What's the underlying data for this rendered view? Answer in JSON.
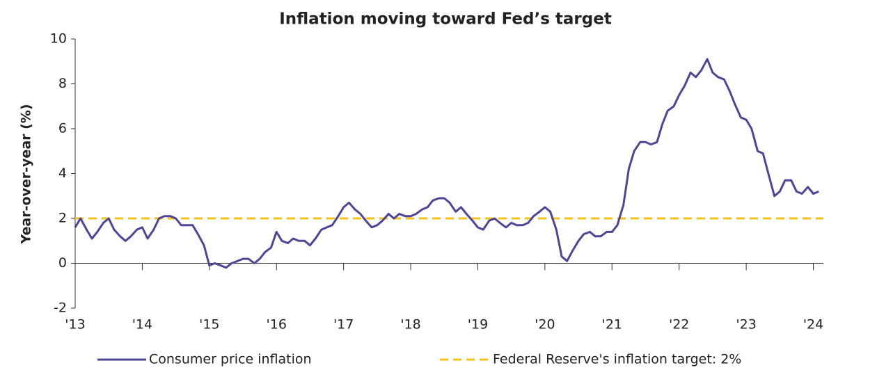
{
  "chart_data": {
    "type": "line",
    "title": "Inflation moving toward Fed’s target",
    "y_label": "Year-over-year (%)",
    "x": [
      2013,
      2013.08,
      2013.17,
      2013.25,
      2013.33,
      2013.42,
      2013.5,
      2013.58,
      2013.67,
      2013.75,
      2013.83,
      2013.92,
      2014,
      2014.08,
      2014.17,
      2014.25,
      2014.33,
      2014.42,
      2014.5,
      2014.58,
      2014.67,
      2014.75,
      2014.83,
      2014.92,
      2015,
      2015.08,
      2015.17,
      2015.25,
      2015.33,
      2015.42,
      2015.5,
      2015.58,
      2015.67,
      2015.75,
      2015.83,
      2015.92,
      2016,
      2016.08,
      2016.17,
      2016.25,
      2016.33,
      2016.42,
      2016.5,
      2016.58,
      2016.67,
      2016.75,
      2016.83,
      2016.92,
      2017,
      2017.08,
      2017.17,
      2017.25,
      2017.33,
      2017.42,
      2017.5,
      2017.58,
      2017.67,
      2017.75,
      2017.83,
      2017.92,
      2018,
      2018.08,
      2018.17,
      2018.25,
      2018.33,
      2018.42,
      2018.5,
      2018.58,
      2018.67,
      2018.75,
      2018.83,
      2018.92,
      2019,
      2019.08,
      2019.17,
      2019.25,
      2019.33,
      2019.42,
      2019.5,
      2019.58,
      2019.67,
      2019.75,
      2019.83,
      2019.92,
      2020,
      2020.08,
      2020.17,
      2020.25,
      2020.33,
      2020.42,
      2020.5,
      2020.58,
      2020.67,
      2020.75,
      2020.83,
      2020.92,
      2021,
      2021.08,
      2021.17,
      2021.25,
      2021.33,
      2021.42,
      2021.5,
      2021.58,
      2021.67,
      2021.75,
      2021.83,
      2021.92,
      2022,
      2022.08,
      2022.17,
      2022.25,
      2022.33,
      2022.42,
      2022.5,
      2022.58,
      2022.67,
      2022.75,
      2022.83,
      2022.92,
      2023,
      2023.08,
      2023.17,
      2023.25,
      2023.33,
      2023.42,
      2023.5,
      2023.58,
      2023.67,
      2023.75,
      2023.83,
      2023.92,
      2024,
      2024.08
    ],
    "series": [
      {
        "name": "Consumer price inflation",
        "color": "#4f4495",
        "values": [
          1.6,
          2.0,
          1.5,
          1.1,
          1.4,
          1.8,
          2.0,
          1.5,
          1.2,
          1.0,
          1.2,
          1.5,
          1.6,
          1.1,
          1.5,
          2.0,
          2.1,
          2.1,
          2.0,
          1.7,
          1.7,
          1.7,
          1.3,
          0.8,
          -0.1,
          0.0,
          -0.1,
          -0.2,
          0.0,
          0.1,
          0.2,
          0.2,
          0.0,
          0.2,
          0.5,
          0.7,
          1.4,
          1.0,
          0.9,
          1.1,
          1.0,
          1.0,
          0.8,
          1.1,
          1.5,
          1.6,
          1.7,
          2.1,
          2.5,
          2.7,
          2.4,
          2.2,
          1.9,
          1.6,
          1.7,
          1.9,
          2.2,
          2.0,
          2.2,
          2.1,
          2.1,
          2.2,
          2.4,
          2.5,
          2.8,
          2.9,
          2.9,
          2.7,
          2.3,
          2.5,
          2.2,
          1.9,
          1.6,
          1.5,
          1.9,
          2.0,
          1.8,
          1.6,
          1.8,
          1.7,
          1.7,
          1.8,
          2.1,
          2.3,
          2.5,
          2.3,
          1.5,
          0.3,
          0.1,
          0.6,
          1.0,
          1.3,
          1.4,
          1.2,
          1.2,
          1.4,
          1.4,
          1.7,
          2.6,
          4.2,
          5.0,
          5.4,
          5.4,
          5.3,
          5.4,
          6.2,
          6.8,
          7.0,
          7.5,
          7.9,
          8.5,
          8.3,
          8.6,
          9.1,
          8.5,
          8.3,
          8.2,
          7.7,
          7.1,
          6.5,
          6.4,
          6.0,
          5.0,
          4.9,
          4.0,
          3.0,
          3.2,
          3.7,
          3.7,
          3.2,
          3.1,
          3.4,
          3.1,
          3.2
        ]
      }
    ],
    "target": {
      "name": "Federal Reserve's inflation target: 2%",
      "value": 2,
      "color": "#f5c317"
    },
    "xlim": [
      2013,
      2024.15
    ],
    "xticks": [
      {
        "value": 2013,
        "label": "'13"
      },
      {
        "value": 2014,
        "label": "'14"
      },
      {
        "value": 2015,
        "label": "'15"
      },
      {
        "value": 2016,
        "label": "'16"
      },
      {
        "value": 2017,
        "label": "'17"
      },
      {
        "value": 2018,
        "label": "'18"
      },
      {
        "value": 2019,
        "label": "'19"
      },
      {
        "value": 2020,
        "label": "'20"
      },
      {
        "value": 2021,
        "label": "'21"
      },
      {
        "value": 2022,
        "label": "'22"
      },
      {
        "value": 2023,
        "label": "'23"
      },
      {
        "value": 2024,
        "label": "'24"
      }
    ],
    "ylim": [
      -2,
      10
    ],
    "yticks": [
      -2,
      0,
      2,
      4,
      6,
      8,
      10
    ]
  }
}
